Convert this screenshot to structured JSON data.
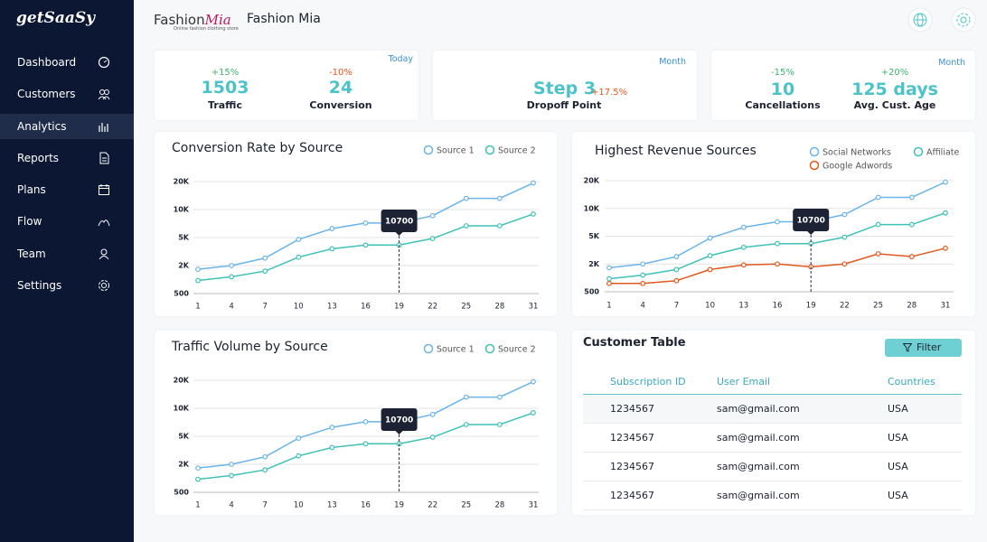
{
  "sidebar": {
    "logo": "getSaaSy",
    "menu": [
      "Dashboard",
      "Customers",
      "Analytics",
      "Reports",
      "Plans",
      "Flow",
      "Team",
      "Settings"
    ]
  },
  "header": {
    "brand": "Fashion",
    "brand_accent": "Mia",
    "tagline": "Online fashion clothing store",
    "title": "Fashion Mia"
  },
  "kpi_cards": [
    {
      "period": "Today",
      "metrics": [
        {
          "change": "+15%",
          "value": 1503,
          "label": "Traffic"
        },
        {
          "change": "-10%",
          "value": 24,
          "label": "Conversion"
        }
      ]
    },
    {
      "period": "Month",
      "metrics": [
        {
          "value": "Step 3",
          "change": "+17.5%",
          "label": "Dropoff Point"
        }
      ]
    },
    {
      "period": "Month",
      "metrics": [
        {
          "change": "-15%",
          "value": 10,
          "label": "Cancellations"
        },
        {
          "change": "+20%",
          "value": "125 days",
          "label": "Avg. Cust. Age"
        }
      ]
    }
  ],
  "chart_data": [
    {
      "type": "line",
      "title": "Conversion Rate by Source",
      "x": [
        1,
        4,
        7,
        10,
        13,
        16,
        19,
        22,
        25,
        28,
        31
      ],
      "xlim": [
        1,
        31
      ],
      "xticks": [
        1,
        4,
        7,
        10,
        13,
        16,
        19,
        22,
        25,
        28,
        31
      ],
      "ylim": [
        500,
        20000
      ],
      "yticks": [
        500,
        {
          "value": 2000,
          "label": "2K"
        },
        {
          "value": 5000,
          "label": "5K"
        },
        {
          "value": 10000,
          "label": "10K"
        },
        {
          "value": 20000,
          "label": "20K"
        }
      ],
      "grid": true,
      "series": [
        {
          "name": "Source 1",
          "color": "#6ab4ea",
          "values": [
            1800,
            2000,
            2800,
            4800,
            6600,
            7600,
            7600,
            8900,
            14000,
            14000,
            19500
          ]
        },
        {
          "name": "Source 2",
          "color": "#3fc1b8",
          "values": [
            1200,
            1400,
            1700,
            2900,
            3800,
            4200,
            4200,
            4900,
            7100,
            7100,
            9200
          ]
        }
      ],
      "annotation": {
        "x": 19,
        "label": "10700"
      }
    },
    {
      "type": "line",
      "title": "Highest Revenue Sources",
      "x": [
        1,
        4,
        7,
        10,
        13,
        16,
        19,
        22,
        25,
        28,
        31
      ],
      "xlim": [
        1,
        31
      ],
      "xticks": [
        1,
        4,
        7,
        10,
        13,
        16,
        19,
        22,
        25,
        28,
        31
      ],
      "ylim": [
        500,
        20000
      ],
      "yticks": [
        500,
        {
          "value": 2000,
          "label": "2K"
        },
        {
          "value": 5000,
          "label": "5K"
        },
        {
          "value": 10000,
          "label": "10K"
        },
        {
          "value": 20000,
          "label": "20K"
        }
      ],
      "grid": true,
      "series": [
        {
          "name": "Social Networks",
          "color": "#6ab4ea",
          "values": [
            1800,
            2000,
            2800,
            4800,
            6600,
            7600,
            7600,
            8900,
            14000,
            14000,
            19500
          ]
        },
        {
          "name": "Affiliate",
          "color": "#3fc1b8",
          "values": [
            1200,
            1400,
            1700,
            2900,
            3800,
            4200,
            4200,
            4900,
            7100,
            7100,
            9200
          ]
        },
        {
          "name": "Google Adwords",
          "color": "#e2571e",
          "values": [
            950,
            950,
            1100,
            1700,
            1950,
            2000,
            1850,
            2000,
            3100,
            2800,
            3700
          ]
        }
      ],
      "annotation": {
        "x": 19,
        "label": "10700"
      }
    },
    {
      "type": "line",
      "title": "Traffic Volume by Source",
      "x": [
        1,
        4,
        7,
        10,
        13,
        16,
        19,
        22,
        25,
        28,
        31
      ],
      "xlim": [
        1,
        31
      ],
      "xticks": [
        1,
        4,
        7,
        10,
        13,
        16,
        19,
        22,
        25,
        28,
        31
      ],
      "ylim": [
        500,
        20000
      ],
      "yticks": [
        500,
        {
          "value": 2000,
          "label": "2K"
        },
        {
          "value": 5000,
          "label": "5K"
        },
        {
          "value": 10000,
          "label": "10K"
        },
        {
          "value": 20000,
          "label": "20K"
        }
      ],
      "grid": true,
      "series": [
        {
          "name": "Source 1",
          "color": "#6ab4ea",
          "values": [
            1800,
            2000,
            2800,
            4800,
            6600,
            7600,
            7600,
            8900,
            14000,
            14000,
            19500
          ]
        },
        {
          "name": "Source 2",
          "color": "#3fc1b8",
          "values": [
            1200,
            1400,
            1700,
            2900,
            3800,
            4200,
            4200,
            4900,
            7100,
            7100,
            9200
          ]
        }
      ],
      "annotation": {
        "x": 19,
        "label": "10700"
      }
    }
  ],
  "customer_table": {
    "title": "Customer Table",
    "filter_button": "Filter",
    "columns": [
      "Subscription ID",
      "User Email",
      "Countries"
    ],
    "rows": [
      [
        1234567,
        "sam@gmail.com",
        "USA"
      ],
      [
        1234567,
        "sam@gmail.com",
        "USA"
      ],
      [
        1234567,
        "sam@gmail.com",
        "USA"
      ],
      [
        1234567,
        "sam@gmail.com",
        "USA"
      ]
    ]
  }
}
